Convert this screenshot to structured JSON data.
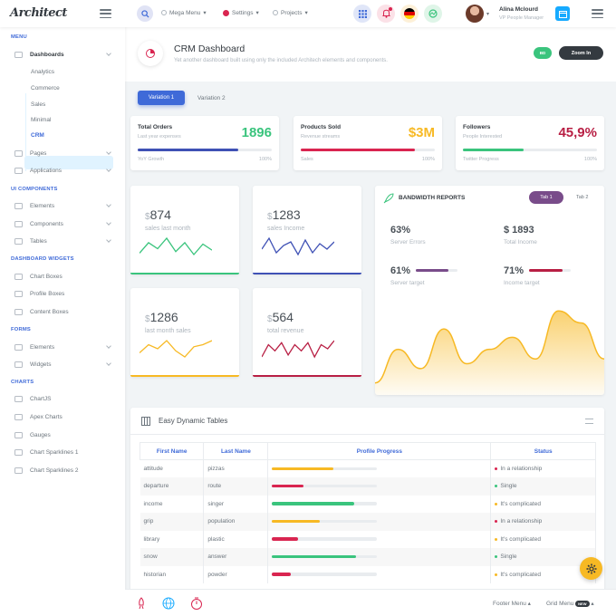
{
  "header": {
    "logo": "Architect",
    "menus": [
      "Mega Menu",
      "Settings",
      "Projects"
    ],
    "user_name": "Alina Mclourd",
    "user_role": "VP People Manager",
    "flag_colors": [
      "#000000",
      "#dd0000",
      "#ffce00"
    ],
    "grid_icon": "grid-icon",
    "bell_icon": "bell-icon"
  },
  "sidebar": {
    "sections": [
      {
        "title": "MENU",
        "items": [
          {
            "label": "Dashboards",
            "icon": "rocket-icon",
            "subitems": [
              "Analytics",
              "Commerce",
              "Sales",
              "Minimal",
              "CRM"
            ],
            "active_sub": "CRM"
          },
          {
            "label": "Pages",
            "icon": "browser-icon"
          },
          {
            "label": "Applications",
            "icon": "plug-icon"
          }
        ]
      },
      {
        "title": "UI COMPONENTS",
        "items": [
          {
            "label": "Elements",
            "icon": "diamond-icon"
          },
          {
            "label": "Components",
            "icon": "car-icon"
          },
          {
            "label": "Tables",
            "icon": "display-icon"
          }
        ]
      },
      {
        "title": "DASHBOARD WIDGETS",
        "items": [
          {
            "label": "Chart Boxes",
            "icon": "light-icon"
          },
          {
            "label": "Profile Boxes",
            "icon": "id-icon"
          },
          {
            "label": "Content Boxes",
            "icon": "browser-icon"
          }
        ]
      },
      {
        "title": "FORMS",
        "items": [
          {
            "label": "Elements",
            "icon": "diamond-icon"
          },
          {
            "label": "Widgets",
            "icon": "wand-icon"
          }
        ]
      },
      {
        "title": "CHARTS",
        "items": [
          {
            "label": "ChartJS",
            "icon": "graph-icon"
          },
          {
            "label": "Apex Charts",
            "icon": "graph-icon"
          },
          {
            "label": "Gauges",
            "icon": "gauge-icon"
          },
          {
            "label": "Chart Sparklines 1",
            "icon": "graph-icon"
          },
          {
            "label": "Chart Sparklines 2",
            "icon": "graph-icon"
          }
        ]
      }
    ]
  },
  "page": {
    "title": "CRM Dashboard",
    "subtitle": "Yet another dashboard built using only the included Architech elements and components.",
    "green_button": "BD",
    "dark_button": "Zoom In",
    "tabs": [
      "Variation 1",
      "Variation 2"
    ]
  },
  "stats": [
    {
      "title": "Total Orders",
      "subtitle": "Last year expenses",
      "value": "1896",
      "color": "#3ac47d",
      "bar_color": "#3f51b5",
      "progress": 0.75,
      "left": "YoY Growth",
      "right": "100%"
    },
    {
      "title": "Products Sold",
      "subtitle": "Revenue streams",
      "value": "$3M",
      "color": "#f7b924",
      "bar_color": "#d92550",
      "progress": 0.85,
      "left": "Sales",
      "right": "100%"
    },
    {
      "title": "Followers",
      "subtitle": "People Interested",
      "value": "45,9%",
      "color": "#b81f44",
      "bar_color": "#3ac47d",
      "progress": 0.45,
      "left": "Twitter Progress",
      "right": "100%"
    }
  ],
  "sparks": [
    {
      "currency": "$",
      "value": "874",
      "label": "sales last month",
      "color": "#3ac47d",
      "points": [
        5,
        12,
        8,
        15,
        6,
        12,
        4,
        11,
        7
      ]
    },
    {
      "currency": "$",
      "value": "1283",
      "label": "sales Income",
      "color": "#3f51b5",
      "points": [
        8,
        14,
        6,
        10,
        12,
        5,
        13,
        6,
        11,
        8,
        12
      ]
    },
    {
      "currency": "$",
      "value": "1286",
      "label": "last month sales",
      "color": "#f7b924",
      "points": [
        8,
        12,
        10,
        14,
        9,
        6,
        11,
        12,
        14
      ]
    },
    {
      "currency": "$",
      "value": "564",
      "label": "total revenue",
      "color": "#b81f44",
      "points": [
        6,
        12,
        9,
        13,
        7,
        12,
        9,
        13,
        6,
        12,
        10,
        14
      ]
    }
  ],
  "bandwidth": {
    "title": "BANDWIDTH REPORTS",
    "tab1": "Tab 1",
    "tab2": "Tab 2",
    "stats": [
      {
        "value": "63%",
        "label": "Server Errors"
      },
      {
        "value": "$ 1893",
        "label": "Total Income"
      },
      {
        "value": "61%",
        "label": "Server target",
        "bar": 0.78,
        "color": "#794c8a"
      },
      {
        "value": "71%",
        "label": "Income target",
        "bar": 0.8,
        "color": "#b81f44"
      }
    ],
    "area_points": [
      10,
      38,
      22,
      55,
      26,
      38,
      48,
      30,
      70,
      60,
      30
    ]
  },
  "table": {
    "title": "Easy Dynamic Tables",
    "columns": [
      "First Name",
      "Last Name",
      "Profile Progress",
      "Status"
    ],
    "rows": [
      {
        "first": "attitude",
        "last": "pizzas",
        "progress": 0.58,
        "pcolor": "#f7b924",
        "status": "In a relationship",
        "scolor": "#d92550"
      },
      {
        "first": "departure",
        "last": "route",
        "progress": 0.3,
        "pcolor": "#d92550",
        "status": "Single",
        "scolor": "#3ac47d"
      },
      {
        "first": "income",
        "last": "singer",
        "progress": 0.78,
        "pcolor": "#3ac47d",
        "status": "It's complicated",
        "scolor": "#f7b924"
      },
      {
        "first": "grip",
        "last": "population",
        "progress": 0.45,
        "pcolor": "#f7b924",
        "status": "In a relationship",
        "scolor": "#d92550"
      },
      {
        "first": "library",
        "last": "plastic",
        "progress": 0.25,
        "pcolor": "#d92550",
        "status": "It's complicated",
        "scolor": "#f7b924"
      },
      {
        "first": "snow",
        "last": "answer",
        "progress": 0.8,
        "pcolor": "#3ac47d",
        "status": "Single",
        "scolor": "#3ac47d"
      },
      {
        "first": "historian",
        "last": "powder",
        "progress": 0.18,
        "pcolor": "#d92550",
        "status": "It's complicated",
        "scolor": "#f7b924"
      }
    ]
  },
  "footer": {
    "menu1": "Footer Menu",
    "menu2": "Grid Menu",
    "badge": "NEW"
  }
}
